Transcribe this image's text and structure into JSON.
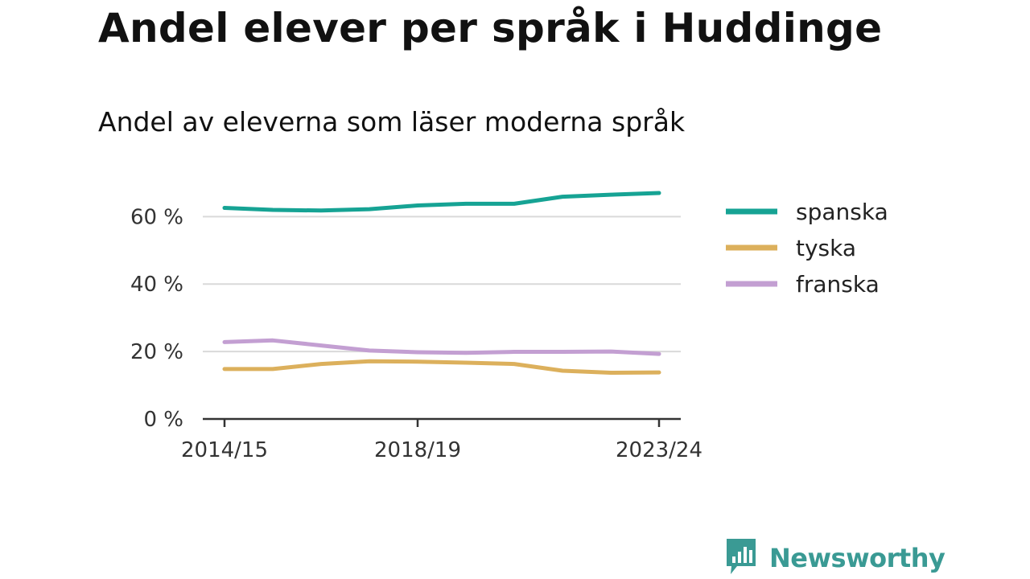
{
  "title": "Andel elever per språk i Huddinge",
  "subtitle": "Andel av eleverna som läser moderna språk",
  "brand": {
    "name": "Newsworthy",
    "icon": "newsworthy-logo-icon",
    "color": "#3a9a94"
  },
  "chart_data": {
    "type": "line",
    "title": "Andel elever per språk i Huddinge",
    "subtitle": "Andel av eleverna som läser moderna språk",
    "xlabel": "",
    "ylabel": "",
    "x": [
      "2014/15",
      "2015/16",
      "2016/17",
      "2017/18",
      "2018/19",
      "2019/20",
      "2020/21",
      "2021/22",
      "2022/23",
      "2023/24"
    ],
    "x_tick_labels": [
      "2014/15",
      "2018/19",
      "2023/24"
    ],
    "y_ticks": [
      0,
      20,
      40,
      60
    ],
    "y_tick_labels": [
      "0 %",
      "20 %",
      "40 %",
      "60 %"
    ],
    "ylim": [
      0,
      67
    ],
    "grid": "horizontal",
    "legend_position": "right",
    "series": [
      {
        "name": "spanska",
        "color": "#16a394",
        "values": [
          62.6,
          62.0,
          61.8,
          62.2,
          63.3,
          63.8,
          63.8,
          65.9,
          66.5,
          67.0
        ]
      },
      {
        "name": "tyska",
        "color": "#dcb05c",
        "values": [
          14.8,
          14.8,
          16.3,
          17.1,
          17.0,
          16.7,
          16.3,
          14.3,
          13.7,
          13.8
        ]
      },
      {
        "name": "franska",
        "color": "#c39fd2",
        "values": [
          22.8,
          23.3,
          21.8,
          20.3,
          19.8,
          19.6,
          19.9,
          19.9,
          20.0,
          19.3
        ]
      }
    ]
  }
}
